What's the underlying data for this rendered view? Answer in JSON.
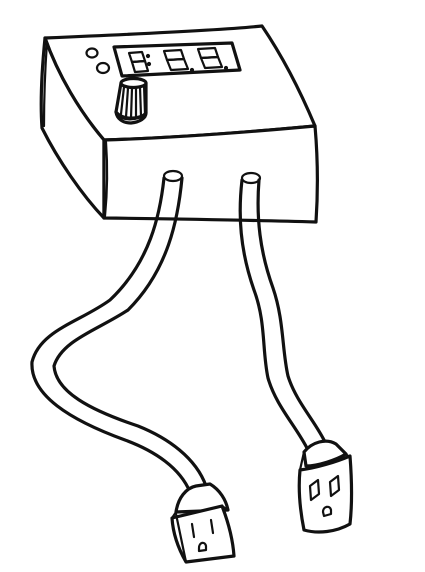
{
  "illustration": {
    "subject": "controller-box-with-display-knob-and-two-power-cords",
    "style": "black-ink line drawing on white",
    "colors": {
      "ink": "#111111",
      "paper": "#ffffff"
    },
    "display": {
      "digits": [
        "8",
        "8",
        "8"
      ],
      "separator_after_first": ":"
    },
    "indicator_count": 2,
    "cords": [
      {
        "id": "left",
        "end": "female-outlet-connector"
      },
      {
        "id": "right",
        "end": "male-plug-connector"
      }
    ]
  }
}
